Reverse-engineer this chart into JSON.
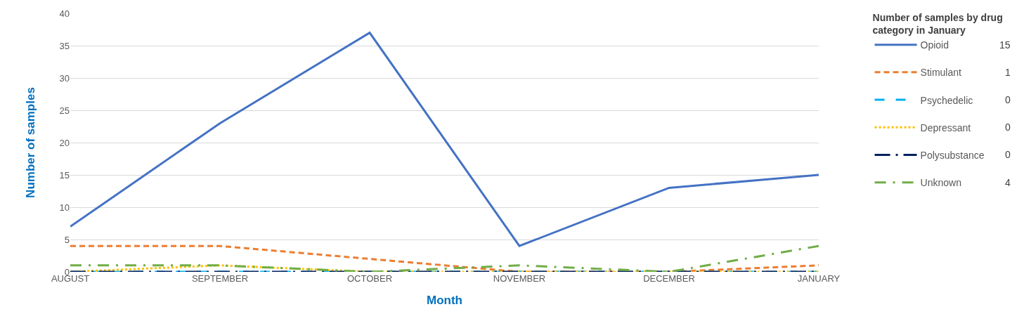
{
  "chart_data": {
    "type": "line",
    "xlabel": "Month",
    "ylabel": "Number of samples",
    "legend_title": "Number of samples by drug category in January",
    "annotations": [
      "15",
      "1",
      "0",
      "0",
      "0",
      "4"
    ],
    "categories": [
      "AUGUST",
      "SEPTEMBER",
      "OCTOBER",
      "NOVEMBER",
      "DECEMBER",
      "JANUARY"
    ],
    "ylim": [
      0,
      40
    ],
    "yticks": [
      0,
      5,
      10,
      15,
      20,
      25,
      30,
      35,
      40
    ],
    "grid": "y",
    "legend": "right",
    "marker": "none",
    "series": [
      {
        "name": "Opioid",
        "color": "#4472c4",
        "line_style": "solid",
        "values": [
          7,
          23,
          37,
          4,
          13,
          15
        ]
      },
      {
        "name": "Stimulant",
        "color": "#ed7d31",
        "line_style": "dashed",
        "values": [
          4,
          4,
          2,
          0,
          0,
          1
        ]
      },
      {
        "name": "Psychedelic",
        "color": "#00b0f0",
        "line_style": "dashed",
        "values": [
          0,
          0,
          0,
          0,
          0,
          0
        ]
      },
      {
        "name": "Depressant",
        "color": "#ffc000",
        "line_style": "dotted",
        "values": [
          0,
          1,
          0,
          0,
          0,
          0
        ]
      },
      {
        "name": "Polysubstance",
        "color": "#002060",
        "line_style": "dashed",
        "values": [
          0,
          0,
          0,
          0,
          0,
          0
        ]
      },
      {
        "name": "Unknown",
        "color": "#70ad47",
        "line_style": "dashed",
        "values": [
          1,
          1,
          0,
          1,
          0,
          4
        ]
      }
    ]
  }
}
